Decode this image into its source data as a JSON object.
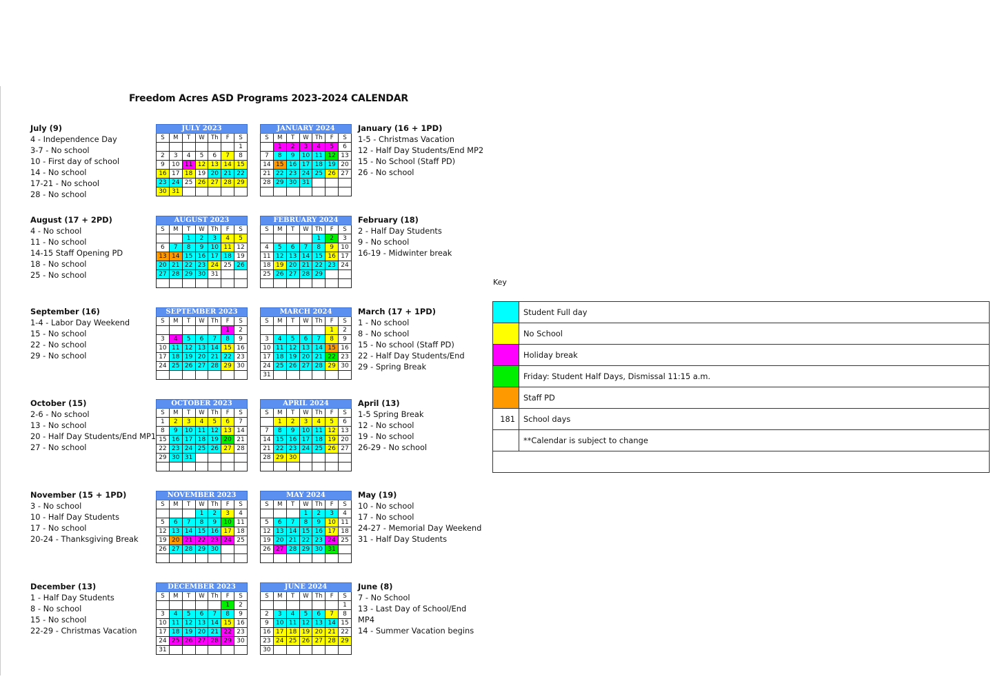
{
  "title": "Freedom Acres ASD Programs 2023-2024 CALENDAR",
  "dow": [
    "S",
    "M",
    "T",
    "W",
    "Th",
    "F",
    "S"
  ],
  "colors": {
    "F": "#00ffff",
    "N": "#ffff00",
    "H": "#ff00ff",
    "G": "#00ee00",
    "P": "#ff9900"
  },
  "months": [
    {
      "name": "JULY 2023",
      "col": 0,
      "row": 0,
      "start": 6,
      "days": 31,
      "codes": "......N...HNNNNN.N.FFFFF.NNNNNN.FFFFF.FF"
    },
    {
      "name": "AUGUST 2023",
      "col": 0,
      "row": 1,
      "start": 2,
      "days": 31,
      "codes": "FFFNN.FFFFN.PPFFFF.FFFFN.FFFFF"
    },
    {
      "name": "SEPTEMBER 2023",
      "col": 0,
      "row": 2,
      "start": 5,
      "days": 30,
      "codes": "H..HFFFF..FFFFN..FFFFF..FFFFN."
    },
    {
      "name": "OCTOBER 2023",
      "col": 0,
      "row": 3,
      "start": 0,
      "days": 31,
      "codes": ".NNNNN..FFFFN..FFFFG..FFFFN..FF"
    },
    {
      "name": "NOVEMBER 2023",
      "col": 0,
      "row": 4,
      "start": 3,
      "days": 30,
      "codes": "FFN..FFFFG..FFFFN..PHHHH..FFFF"
    },
    {
      "name": "DECEMBER 2023",
      "col": 0,
      "row": 5,
      "start": 5,
      "days": 31,
      "codes": "G..FFFFF..FFFFN..FFFFH..HHHHH.."
    },
    {
      "name": "JANUARY 2024",
      "col": 1,
      "row": 0,
      "start": 1,
      "days": 31,
      "codes": "HHHHH..FFFFG..PFFFF..FFFFN..FFF"
    },
    {
      "name": "FEBRUARY 2024",
      "col": 1,
      "row": 1,
      "start": 4,
      "days": 29,
      "codes": "FG..FFFFN..FFFFN..NFFFF..FFFF"
    },
    {
      "name": "MARCH 2024",
      "col": 1,
      "row": 2,
      "start": 5,
      "days": 31,
      "codes": "N..FFFFN..FFFFP..FFFFG..FFFFN.."
    },
    {
      "name": "APRIL 2024",
      "col": 1,
      "row": 3,
      "start": 1,
      "days": 30,
      "codes": "NNNNN..FFFFN..FFFFN..FFFFN..NN"
    },
    {
      "name": "MAY 2024",
      "col": 1,
      "row": 4,
      "start": 3,
      "days": 31,
      "codes": "FFF..FFFFN..FFFFN..FFFFH..HFFFG."
    },
    {
      "name": "JUNE 2024",
      "col": 1,
      "row": 5,
      "start": 6,
      "days": 30,
      "codes": "..FFFFN..FFFFF..NNNNN..NNNNNN..."
    }
  ],
  "notes_left": [
    [
      "July (9)",
      "4 - Independence Day",
      "3-7 - No school",
      "10 - First day of school",
      "14 - No school",
      "17-21 - No school",
      "28 - No school"
    ],
    [
      "August (17 + 2PD)",
      "4 - No school",
      "11 - No school",
      "14-15 Staff Opening PD",
      "18 - No school",
      "25 - No school"
    ],
    [
      "September (16)",
      "1-4 - Labor Day Weekend",
      "15 - No school",
      "22 - No school",
      "29 - No school"
    ],
    [
      "October (15)",
      "2-6 - No school",
      "13 - No school",
      "20 - Half Day Students/End MP1",
      "27 - No school"
    ],
    [
      "November (15 + 1PD)",
      "3 - No school",
      "10 - Half Day Students",
      "17 - No school",
      "20-24 - Thanksgiving Break"
    ],
    [
      "December (13)",
      "1 - Half Day Students",
      "8 - No school",
      "15 - No school",
      "22-29 - Christmas Vacation"
    ]
  ],
  "notes_right": [
    [
      "January (16 + 1PD)",
      "1-5 - Christmas Vacation",
      "12 - Half Day Students/End MP2",
      "15 - No School (Staff PD)",
      "26 - No school"
    ],
    [
      "February (18)",
      "2 - Half Day Students",
      "9 - No school",
      "16-19 - Midwinter break"
    ],
    [
      "March (17 + 1PD)",
      "1 - No school",
      "8 - No school",
      "15 - No school (Staff PD)",
      "22 - Half Day Students/End",
      "29 - Spring Break"
    ],
    [
      "April (13)",
      "1-5 Spring Break",
      "12 - No school",
      "19 - No school",
      "26-29 - No school"
    ],
    [
      "May (19)",
      "10 - No school",
      "17 - No school",
      "24-27 - Memorial Day Weekend",
      "31 - Half Day Students"
    ],
    [
      "June (8)",
      "7 - No School",
      "13 - Last Day of School/End",
      "MP4",
      "14 - Summer Vacation begins"
    ]
  ],
  "key": {
    "label": "Key",
    "rows": [
      {
        "swatch": "F",
        "value": "",
        "text": "Student Full day"
      },
      {
        "swatch": "N",
        "value": "",
        "text": "No School"
      },
      {
        "swatch": "H",
        "value": "",
        "text": "Holiday break"
      },
      {
        "swatch": "G",
        "value": "",
        "text": "Friday: Student Half Days, Dismissal 11:15 a.m."
      },
      {
        "swatch": "P",
        "value": "",
        "text": "Staff PD"
      },
      {
        "swatch": "",
        "value": "181",
        "text": "School days"
      },
      {
        "swatch": "",
        "value": "",
        "text": "**Calendar is subject to change"
      },
      {
        "swatch": "",
        "value": "",
        "text": ""
      }
    ]
  }
}
